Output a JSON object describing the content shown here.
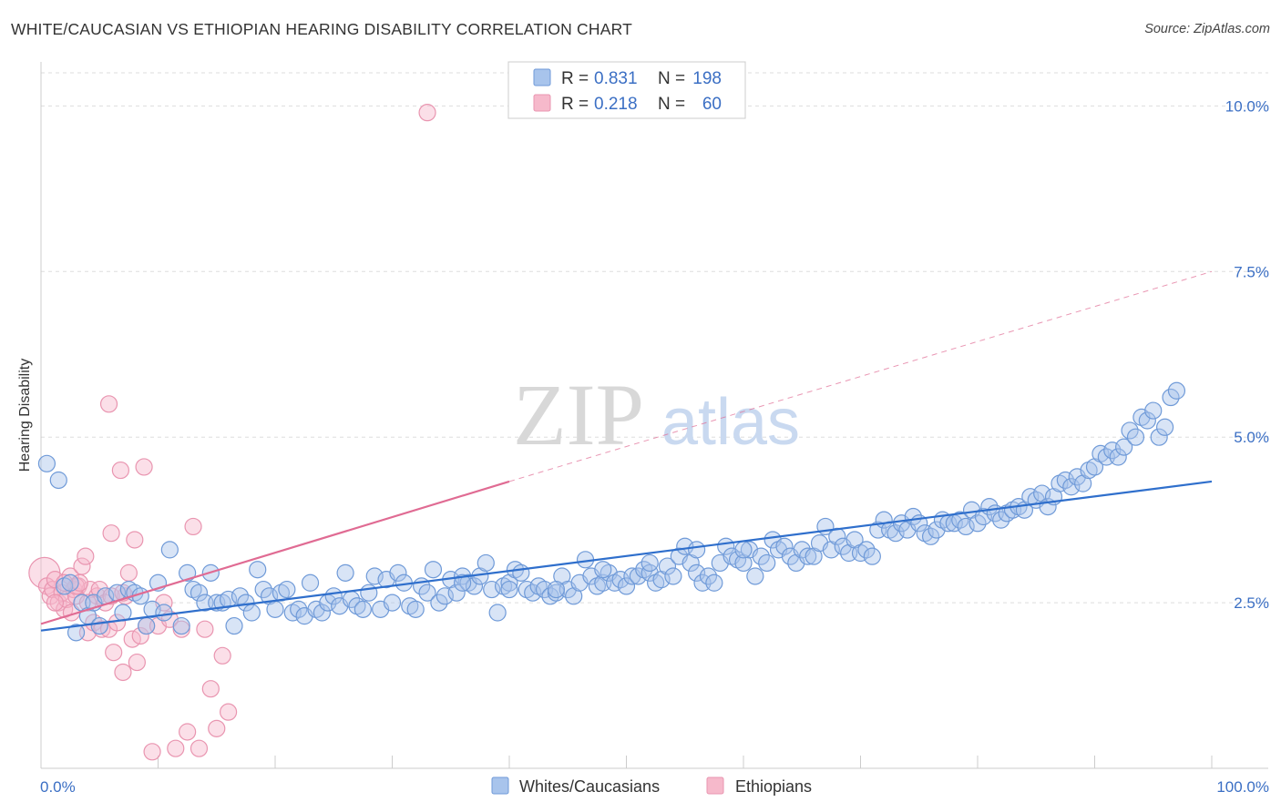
{
  "header": {
    "title": "WHITE/CAUCASIAN VS ETHIOPIAN HEARING DISABILITY CORRELATION CHART",
    "source": "Source: ZipAtlas.com"
  },
  "watermark": {
    "zip": "ZIP",
    "atlas": "atlas"
  },
  "colors": {
    "blue_fill": "#a8c4ec",
    "blue_stroke": "#6f9ad8",
    "blue_line": "#2f6fcc",
    "pink_fill": "#f6b9cb",
    "pink_stroke": "#e995b0",
    "pink_line": "#e06b93",
    "grid": "#dddddd",
    "axis_text": "#3b6fc4"
  },
  "legend": {
    "r_label": "R =",
    "n_label": "N =",
    "rows": [
      {
        "r": "0.831",
        "n": "198"
      },
      {
        "r": "0.218",
        "n": "60"
      }
    ]
  },
  "chart_data": {
    "type": "scatter",
    "title": "WHITE/CAUCASIAN VS ETHIOPIAN HEARING DISABILITY CORRELATION CHART",
    "xlabel": "",
    "ylabel": "Hearing Disability",
    "xlim": [
      0,
      100
    ],
    "ylim": [
      0,
      10.5
    ],
    "x_tick_labels": [
      "0.0%",
      "100.0%"
    ],
    "y_ticks": [
      2.5,
      5.0,
      7.5,
      10.0
    ],
    "y_tick_labels": [
      "2.5%",
      "5.0%",
      "7.5%",
      "10.0%"
    ],
    "grid": true,
    "legend_position": "top-center",
    "series": [
      {
        "name": "Whites/Caucasians",
        "r": 0.831,
        "n": 198,
        "trend": {
          "x0": 0,
          "y0": 2.08,
          "x1": 100,
          "y1": 4.33
        },
        "points": [
          [
            0.5,
            4.6
          ],
          [
            1.5,
            4.35
          ],
          [
            2.0,
            2.75
          ],
          [
            2.5,
            2.8
          ],
          [
            3.0,
            2.05
          ],
          [
            3.5,
            2.5
          ],
          [
            4.0,
            2.3
          ],
          [
            4.5,
            2.5
          ],
          [
            5.0,
            2.15
          ],
          [
            5.5,
            2.6
          ],
          [
            6.5,
            2.65
          ],
          [
            7.0,
            2.35
          ],
          [
            7.5,
            2.7
          ],
          [
            8.0,
            2.65
          ],
          [
            8.5,
            2.6
          ],
          [
            9.0,
            2.15
          ],
          [
            9.5,
            2.4
          ],
          [
            10.0,
            2.8
          ],
          [
            10.5,
            2.35
          ],
          [
            11.0,
            3.3
          ],
          [
            12.0,
            2.15
          ],
          [
            12.5,
            2.95
          ],
          [
            13.0,
            2.7
          ],
          [
            13.5,
            2.65
          ],
          [
            14.0,
            2.5
          ],
          [
            14.5,
            2.95
          ],
          [
            15.0,
            2.5
          ],
          [
            15.5,
            2.5
          ],
          [
            16.0,
            2.55
          ],
          [
            16.5,
            2.15
          ],
          [
            17.0,
            2.6
          ],
          [
            17.5,
            2.5
          ],
          [
            18.0,
            2.35
          ],
          [
            18.5,
            3.0
          ],
          [
            19.0,
            2.7
          ],
          [
            19.5,
            2.6
          ],
          [
            20.0,
            2.4
          ],
          [
            20.5,
            2.65
          ],
          [
            21.0,
            2.7
          ],
          [
            21.5,
            2.35
          ],
          [
            22.0,
            2.4
          ],
          [
            22.5,
            2.3
          ],
          [
            23.0,
            2.8
          ],
          [
            23.5,
            2.4
          ],
          [
            24.0,
            2.35
          ],
          [
            24.5,
            2.5
          ],
          [
            25.0,
            2.6
          ],
          [
            25.5,
            2.45
          ],
          [
            26.0,
            2.95
          ],
          [
            26.5,
            2.55
          ],
          [
            27.0,
            2.45
          ],
          [
            27.5,
            2.4
          ],
          [
            28.0,
            2.65
          ],
          [
            28.5,
            2.9
          ],
          [
            29.0,
            2.4
          ],
          [
            29.5,
            2.85
          ],
          [
            30.0,
            2.5
          ],
          [
            30.5,
            2.95
          ],
          [
            31.0,
            2.8
          ],
          [
            31.5,
            2.45
          ],
          [
            32.0,
            2.4
          ],
          [
            32.5,
            2.75
          ],
          [
            33.0,
            2.65
          ],
          [
            33.5,
            3.0
          ],
          [
            34.0,
            2.5
          ],
          [
            34.5,
            2.6
          ],
          [
            35.0,
            2.85
          ],
          [
            35.5,
            2.65
          ],
          [
            36.0,
            2.9
          ],
          [
            36.5,
            2.8
          ],
          [
            37.0,
            2.75
          ],
          [
            37.5,
            2.9
          ],
          [
            38.0,
            3.1
          ],
          [
            38.5,
            2.7
          ],
          [
            39.0,
            2.35
          ],
          [
            39.5,
            2.75
          ],
          [
            40.0,
            2.8
          ],
          [
            40.5,
            3.0
          ],
          [
            41.0,
            2.95
          ],
          [
            41.5,
            2.7
          ],
          [
            42.0,
            2.65
          ],
          [
            42.5,
            2.75
          ],
          [
            43.0,
            2.7
          ],
          [
            43.5,
            2.6
          ],
          [
            44.0,
            2.65
          ],
          [
            44.5,
            2.9
          ],
          [
            45.0,
            2.7
          ],
          [
            45.5,
            2.6
          ],
          [
            46.0,
            2.8
          ],
          [
            46.5,
            3.15
          ],
          [
            47.0,
            2.9
          ],
          [
            47.5,
            2.75
          ],
          [
            48.0,
            2.8
          ],
          [
            48.5,
            2.95
          ],
          [
            49.0,
            2.8
          ],
          [
            49.5,
            2.85
          ],
          [
            50.0,
            2.75
          ],
          [
            50.5,
            2.9
          ],
          [
            51.0,
            2.9
          ],
          [
            51.5,
            3.0
          ],
          [
            52.0,
            2.95
          ],
          [
            52.5,
            2.8
          ],
          [
            53.0,
            2.85
          ],
          [
            53.5,
            3.05
          ],
          [
            54.0,
            2.9
          ],
          [
            54.5,
            3.2
          ],
          [
            55.0,
            3.35
          ],
          [
            55.5,
            3.1
          ],
          [
            56.0,
            2.95
          ],
          [
            56.5,
            2.8
          ],
          [
            57.0,
            2.9
          ],
          [
            57.5,
            2.8
          ],
          [
            58.0,
            3.1
          ],
          [
            58.5,
            3.35
          ],
          [
            59.0,
            3.2
          ],
          [
            59.5,
            3.15
          ],
          [
            60.0,
            3.1
          ],
          [
            60.5,
            3.3
          ],
          [
            61.0,
            2.9
          ],
          [
            61.5,
            3.2
          ],
          [
            62.0,
            3.1
          ],
          [
            62.5,
            3.45
          ],
          [
            63.0,
            3.3
          ],
          [
            63.5,
            3.35
          ],
          [
            64.0,
            3.2
          ],
          [
            64.5,
            3.1
          ],
          [
            65.0,
            3.3
          ],
          [
            65.5,
            3.2
          ],
          [
            66.0,
            3.2
          ],
          [
            66.5,
            3.4
          ],
          [
            67.0,
            3.65
          ],
          [
            67.5,
            3.3
          ],
          [
            68.0,
            3.5
          ],
          [
            68.5,
            3.35
          ],
          [
            69.0,
            3.25
          ],
          [
            69.5,
            3.45
          ],
          [
            70.0,
            3.25
          ],
          [
            70.5,
            3.3
          ],
          [
            71.0,
            3.2
          ],
          [
            71.5,
            3.6
          ],
          [
            72.0,
            3.75
          ],
          [
            72.5,
            3.6
          ],
          [
            73.0,
            3.55
          ],
          [
            73.5,
            3.7
          ],
          [
            74.0,
            3.6
          ],
          [
            74.5,
            3.8
          ],
          [
            75.0,
            3.7
          ],
          [
            75.5,
            3.55
          ],
          [
            76.0,
            3.5
          ],
          [
            76.5,
            3.6
          ],
          [
            77.0,
            3.75
          ],
          [
            77.5,
            3.7
          ],
          [
            78.0,
            3.7
          ],
          [
            78.5,
            3.75
          ],
          [
            79.0,
            3.65
          ],
          [
            79.5,
            3.9
          ],
          [
            80.0,
            3.7
          ],
          [
            80.5,
            3.8
          ],
          [
            81.0,
            3.95
          ],
          [
            81.5,
            3.85
          ],
          [
            82.0,
            3.75
          ],
          [
            82.5,
            3.85
          ],
          [
            83.0,
            3.9
          ],
          [
            83.5,
            3.95
          ],
          [
            84.0,
            3.9
          ],
          [
            84.5,
            4.1
          ],
          [
            85.0,
            4.05
          ],
          [
            85.5,
            4.15
          ],
          [
            86.0,
            3.95
          ],
          [
            86.5,
            4.1
          ],
          [
            87.0,
            4.3
          ],
          [
            87.5,
            4.35
          ],
          [
            88.0,
            4.25
          ],
          [
            88.5,
            4.4
          ],
          [
            89.0,
            4.3
          ],
          [
            89.5,
            4.5
          ],
          [
            90.0,
            4.55
          ],
          [
            90.5,
            4.75
          ],
          [
            91.0,
            4.7
          ],
          [
            91.5,
            4.8
          ],
          [
            92.0,
            4.7
          ],
          [
            92.5,
            4.85
          ],
          [
            93.0,
            5.1
          ],
          [
            93.5,
            5.0
          ],
          [
            94.0,
            5.3
          ],
          [
            94.5,
            5.25
          ],
          [
            95.0,
            5.4
          ],
          [
            95.5,
            5.0
          ],
          [
            96.0,
            5.15
          ],
          [
            96.5,
            5.6
          ],
          [
            97.0,
            5.7
          ],
          [
            36.0,
            2.8
          ],
          [
            40.0,
            2.7
          ],
          [
            44.0,
            2.7
          ],
          [
            48.0,
            3.0
          ],
          [
            52.0,
            3.1
          ],
          [
            56.0,
            3.3
          ],
          [
            60.0,
            3.3
          ]
        ]
      },
      {
        "name": "Ethiopians",
        "r": 0.218,
        "n": 60,
        "trend_solid": {
          "x0": 0,
          "y0": 2.18,
          "x1": 40,
          "y1": 4.33
        },
        "trend_dashed": {
          "x0": 40,
          "y0": 4.33,
          "x1": 100,
          "y1": 7.5
        },
        "points": [
          [
            0.3,
            2.95
          ],
          [
            0.5,
            2.75
          ],
          [
            0.8,
            2.6
          ],
          [
            1.0,
            2.7
          ],
          [
            1.2,
            2.85
          ],
          [
            1.5,
            2.5
          ],
          [
            1.8,
            2.65
          ],
          [
            2.0,
            2.4
          ],
          [
            2.2,
            2.55
          ],
          [
            2.5,
            2.9
          ],
          [
            2.8,
            2.7
          ],
          [
            3.0,
            2.6
          ],
          [
            3.2,
            2.75
          ],
          [
            3.5,
            3.05
          ],
          [
            3.8,
            3.2
          ],
          [
            4.0,
            2.05
          ],
          [
            4.2,
            2.7
          ],
          [
            4.5,
            2.2
          ],
          [
            4.8,
            2.6
          ],
          [
            5.0,
            2.7
          ],
          [
            5.2,
            2.1
          ],
          [
            5.5,
            2.5
          ],
          [
            5.8,
            2.1
          ],
          [
            6.0,
            3.55
          ],
          [
            6.2,
            1.75
          ],
          [
            6.5,
            2.2
          ],
          [
            6.8,
            4.5
          ],
          [
            7.0,
            1.45
          ],
          [
            7.2,
            2.6
          ],
          [
            7.5,
            2.95
          ],
          [
            7.8,
            1.95
          ],
          [
            8.0,
            3.45
          ],
          [
            8.2,
            1.6
          ],
          [
            8.5,
            2.0
          ],
          [
            8.8,
            4.55
          ],
          [
            9.0,
            2.15
          ],
          [
            9.5,
            0.25
          ],
          [
            10.0,
            2.15
          ],
          [
            10.5,
            2.5
          ],
          [
            11.0,
            2.25
          ],
          [
            11.5,
            0.3
          ],
          [
            12.0,
            2.1
          ],
          [
            12.5,
            0.55
          ],
          [
            13.0,
            3.65
          ],
          [
            13.5,
            0.3
          ],
          [
            14.0,
            2.1
          ],
          [
            14.5,
            1.2
          ],
          [
            15.0,
            0.6
          ],
          [
            15.5,
            1.7
          ],
          [
            16.0,
            0.85
          ],
          [
            5.8,
            5.5
          ],
          [
            33.0,
            9.9
          ],
          [
            3.0,
            2.75
          ],
          [
            3.3,
            2.8
          ],
          [
            2.0,
            2.8
          ],
          [
            1.2,
            2.5
          ],
          [
            4.0,
            2.5
          ],
          [
            6.0,
            2.6
          ],
          [
            7.0,
            2.65
          ],
          [
            2.6,
            2.35
          ]
        ]
      }
    ]
  }
}
